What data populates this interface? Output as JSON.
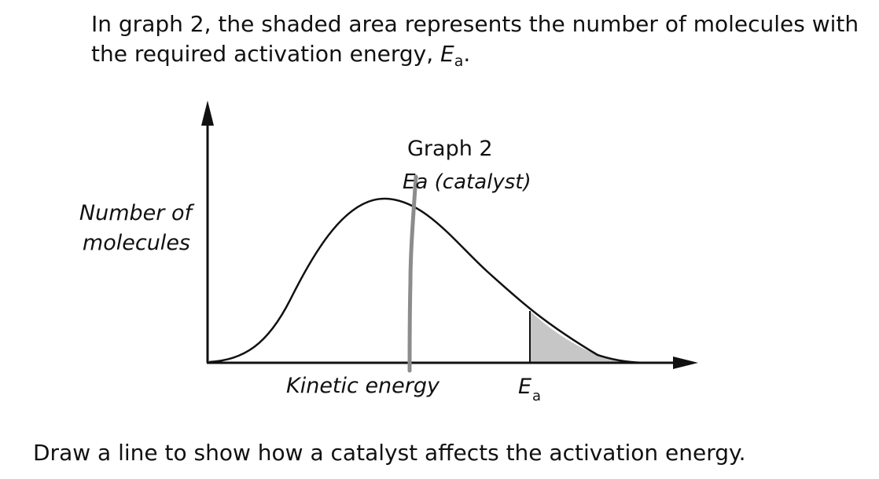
{
  "intro": {
    "text": "In graph 2, the shaded area represents the number of molecules with the required activation energy,",
    "symbol": "E",
    "subscript": "a",
    "end": "."
  },
  "graph": {
    "title": "Graph 2",
    "y_label_line1": "Number of",
    "y_label_line2": "molecules",
    "x_label": "Kinetic energy",
    "ea_symbol": "E",
    "ea_subscript": "a",
    "handwritten_note": "Ea (catalyst)",
    "shade_color": "#c6c6c6",
    "pencil_color": "#8c8c8c"
  },
  "instruction": {
    "text": "Draw a line to show how a catalyst affects the activation energy."
  }
}
